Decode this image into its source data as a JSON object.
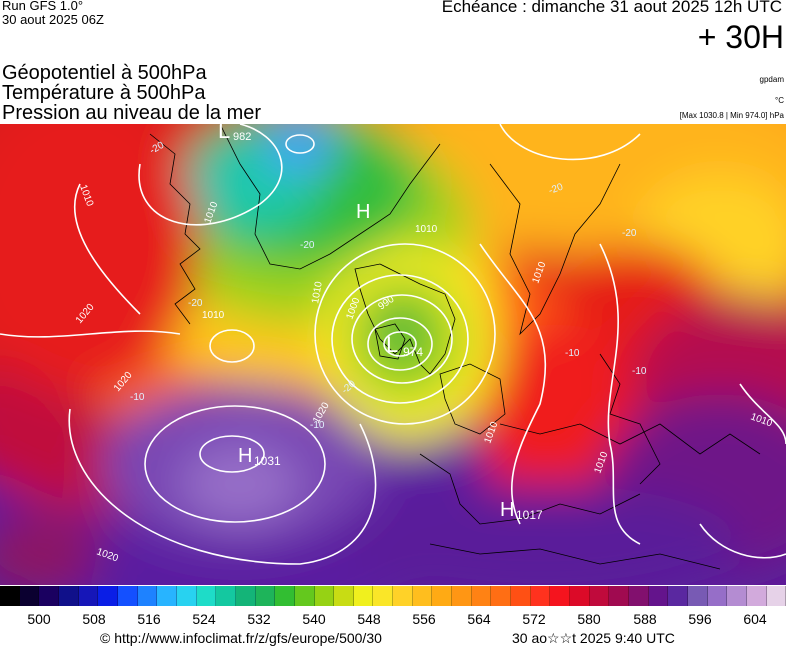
{
  "header": {
    "run": "Run GFS 1.0°",
    "run_date": "30 aout 2025 06Z",
    "echeance": "Echéance : dimanche 31 aout 2025 12h UTC",
    "lead": "+ 30H"
  },
  "titles": [
    "Géopotentiel à 500hPa",
    "Température à 500hPa",
    "Pression au niveau de la mer"
  ],
  "units": {
    "geopotential": "gpdam",
    "temperature": "°C",
    "pressure_range": "[Max 1030.8 | Min 974.0] hPa"
  },
  "pressure_centers": [
    {
      "type": "L",
      "value": "982",
      "letter": "L"
    },
    {
      "type": "H",
      "value": "",
      "letter": "H"
    },
    {
      "type": "L",
      "value": "974",
      "letter": "L"
    },
    {
      "type": "H",
      "value": "1031",
      "letter": "H"
    },
    {
      "type": "H",
      "value": "1017",
      "letter": "H"
    }
  ],
  "isobar_labels": [
    "1010",
    "1010",
    "1010",
    "1020",
    "1020",
    "1020",
    "990",
    "1000",
    "1010",
    "1010",
    "1010",
    "1010",
    "1010",
    "1020",
    "1010"
  ],
  "temperature_labels": [
    "-20",
    "-20",
    "-20",
    "-20",
    "-10",
    "-10",
    "-20",
    "-20",
    "-10",
    "-10"
  ],
  "colorbar": {
    "ticks": [
      "500",
      "508",
      "516",
      "524",
      "532",
      "540",
      "548",
      "556",
      "564",
      "572",
      "580",
      "588",
      "596",
      "604"
    ],
    "colors": [
      "#000000",
      "#0b0030",
      "#1a0060",
      "#10108a",
      "#1616b8",
      "#0a1ee6",
      "#1450ff",
      "#1e82ff",
      "#28b4ff",
      "#28d2f0",
      "#1edcc8",
      "#14c8a0",
      "#14b478",
      "#1eb45a",
      "#32be32",
      "#64c81e",
      "#96d214",
      "#c8dc14",
      "#f0f01e",
      "#fae628",
      "#ffd228",
      "#ffbe1e",
      "#ffaa14",
      "#ff9614",
      "#ff8214",
      "#ff6e14",
      "#ff5014",
      "#ff321e",
      "#f5141e",
      "#dc0a28",
      "#c00a3c",
      "#a00a50",
      "#82106e",
      "#64148c",
      "#5a28a0",
      "#785ab4",
      "#966ec8",
      "#b48cd2",
      "#d2aadc",
      "#e6d2e8"
    ]
  },
  "footer": {
    "copyright": "© http://www.infoclimat.fr/z/gfs/europe/500/30",
    "run_stamp": "30 ao☆☆t 2025  9:40 UTC"
  }
}
